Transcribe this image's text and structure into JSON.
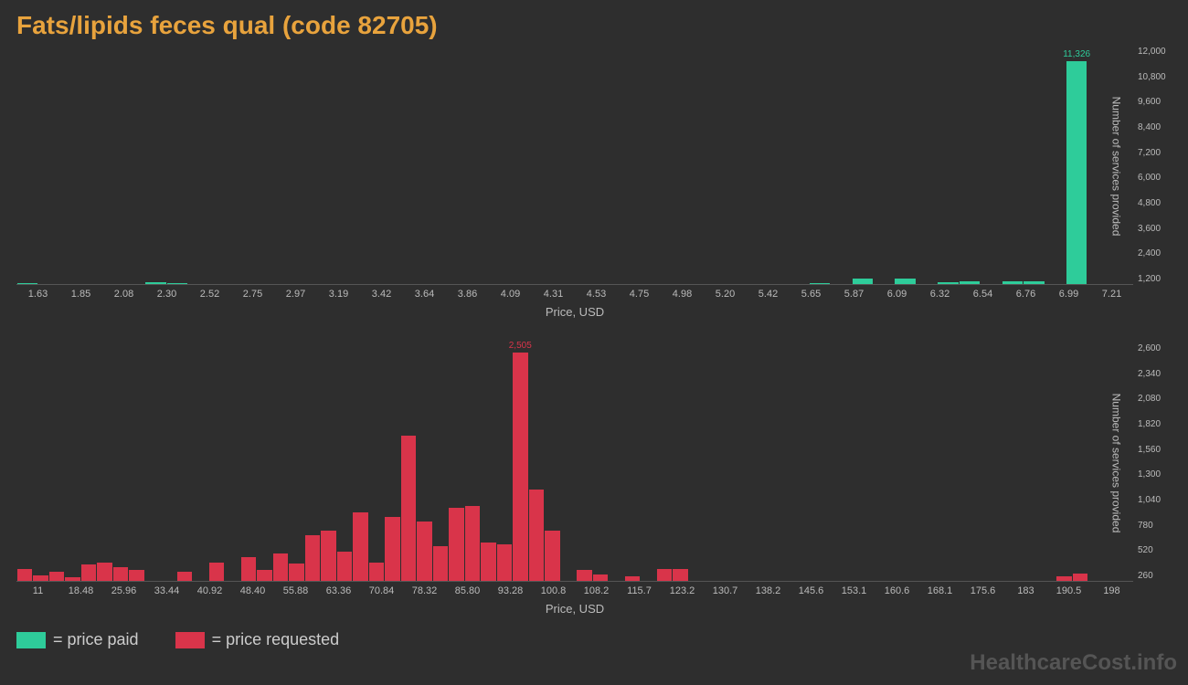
{
  "title": "Fats/lipids feces qual (code 82705)",
  "background_color": "#2e2e2e",
  "title_color": "#e8a33d",
  "axis_text_color": "#bbbbbb",
  "watermark": "HealthcareCost.info",
  "watermark_color": "#555555",
  "legend": [
    {
      "color": "#2ecc9a",
      "label": "= price paid"
    },
    {
      "color": "#d9344a",
      "label": "= price requested"
    }
  ],
  "charts": [
    {
      "id": "chart-paid",
      "bar_color": "#2ecc9a",
      "label_color": "#2ecc9a",
      "x_label": "Price, USD",
      "y_label": "Number of services provided",
      "y_max": 12000,
      "y_ticks": [
        "1,200",
        "2,400",
        "3,600",
        "4,800",
        "6,000",
        "7,200",
        "8,400",
        "9,600",
        "10,800",
        "12,000"
      ],
      "max_bar": {
        "value": 11326,
        "label": "11,326"
      },
      "x_ticks": [
        "1.63",
        "1.85",
        "2.08",
        "2.30",
        "2.52",
        "2.75",
        "2.97",
        "3.19",
        "3.42",
        "3.64",
        "3.86",
        "4.09",
        "4.31",
        "4.53",
        "4.75",
        "4.98",
        "5.20",
        "5.42",
        "5.65",
        "5.87",
        "6.09",
        "6.32",
        "6.54",
        "6.76",
        "6.99",
        "7.21"
      ],
      "bars": [
        {
          "v": 60
        },
        {
          "v": 0
        },
        {
          "v": 0
        },
        {
          "v": 0
        },
        {
          "v": 0
        },
        {
          "v": 0
        },
        {
          "v": 90
        },
        {
          "v": 70
        },
        {
          "v": 0
        },
        {
          "v": 0
        },
        {
          "v": 0
        },
        {
          "v": 0
        },
        {
          "v": 0
        },
        {
          "v": 0
        },
        {
          "v": 0
        },
        {
          "v": 0
        },
        {
          "v": 0
        },
        {
          "v": 0
        },
        {
          "v": 0
        },
        {
          "v": 0
        },
        {
          "v": 0
        },
        {
          "v": 0
        },
        {
          "v": 0
        },
        {
          "v": 0
        },
        {
          "v": 0
        },
        {
          "v": 0
        },
        {
          "v": 0
        },
        {
          "v": 0
        },
        {
          "v": 0
        },
        {
          "v": 0
        },
        {
          "v": 0
        },
        {
          "v": 0
        },
        {
          "v": 0
        },
        {
          "v": 0
        },
        {
          "v": 0
        },
        {
          "v": 0
        },
        {
          "v": 0
        },
        {
          "v": 60
        },
        {
          "v": 0
        },
        {
          "v": 300
        },
        {
          "v": 0
        },
        {
          "v": 300
        },
        {
          "v": 0
        },
        {
          "v": 100
        },
        {
          "v": 140
        },
        {
          "v": 0
        },
        {
          "v": 140
        },
        {
          "v": 120
        },
        {
          "v": 0
        },
        {
          "v": 11326,
          "label": "11,326"
        }
      ]
    },
    {
      "id": "chart-requested",
      "bar_color": "#d9344a",
      "label_color": "#d9344a",
      "x_label": "Price, USD",
      "y_label": "Number of services provided",
      "y_max": 2600,
      "y_ticks": [
        "260",
        "520",
        "780",
        "1,040",
        "1,300",
        "1,560",
        "1,820",
        "2,080",
        "2,340",
        "2,600"
      ],
      "max_bar": {
        "value": 2505,
        "label": "2,505"
      },
      "x_ticks": [
        "11",
        "18.48",
        "25.96",
        "33.44",
        "40.92",
        "48.40",
        "55.88",
        "63.36",
        "70.84",
        "78.32",
        "85.80",
        "93.28",
        "100.8",
        "108.2",
        "115.7",
        "123.2",
        "130.7",
        "138.2",
        "145.6",
        "153.1",
        "160.6",
        "168.1",
        "175.6",
        "183",
        "190.5",
        "198"
      ],
      "bars": [
        {
          "v": 130
        },
        {
          "v": 60
        },
        {
          "v": 100
        },
        {
          "v": 40
        },
        {
          "v": 180
        },
        {
          "v": 200
        },
        {
          "v": 150
        },
        {
          "v": 120
        },
        {
          "v": 0
        },
        {
          "v": 0
        },
        {
          "v": 100
        },
        {
          "v": 0
        },
        {
          "v": 200
        },
        {
          "v": 0
        },
        {
          "v": 260
        },
        {
          "v": 120
        },
        {
          "v": 300
        },
        {
          "v": 190
        },
        {
          "v": 500
        },
        {
          "v": 550
        },
        {
          "v": 320
        },
        {
          "v": 750
        },
        {
          "v": 200
        },
        {
          "v": 700
        },
        {
          "v": 1600
        },
        {
          "v": 650
        },
        {
          "v": 380
        },
        {
          "v": 800
        },
        {
          "v": 820
        },
        {
          "v": 420
        },
        {
          "v": 400
        },
        {
          "v": 2505,
          "label": "2,505"
        },
        {
          "v": 1000
        },
        {
          "v": 550
        },
        {
          "v": 0
        },
        {
          "v": 120
        },
        {
          "v": 70
        },
        {
          "v": 0
        },
        {
          "v": 50
        },
        {
          "v": 0
        },
        {
          "v": 130
        },
        {
          "v": 130
        },
        {
          "v": 0
        },
        {
          "v": 0
        },
        {
          "v": 0
        },
        {
          "v": 0
        },
        {
          "v": 0
        },
        {
          "v": 0
        },
        {
          "v": 0
        },
        {
          "v": 0
        },
        {
          "v": 0
        },
        {
          "v": 0
        },
        {
          "v": 0
        },
        {
          "v": 0
        },
        {
          "v": 0
        },
        {
          "v": 0
        },
        {
          "v": 0
        },
        {
          "v": 0
        },
        {
          "v": 0
        },
        {
          "v": 0
        },
        {
          "v": 0
        },
        {
          "v": 0
        },
        {
          "v": 0
        },
        {
          "v": 0
        },
        {
          "v": 0
        },
        {
          "v": 50
        },
        {
          "v": 80
        }
      ]
    }
  ]
}
